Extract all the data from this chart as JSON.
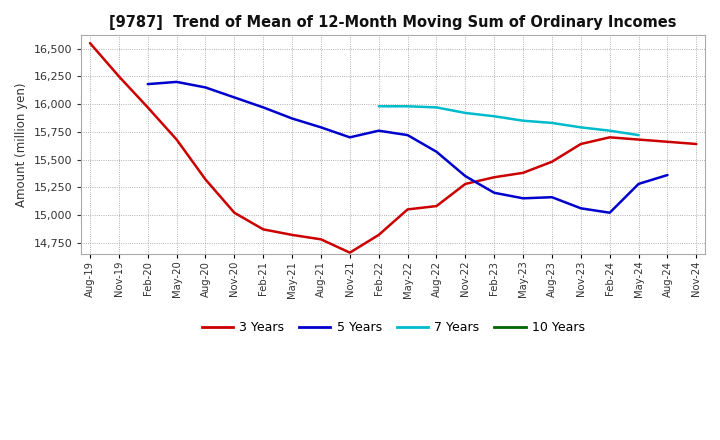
{
  "title": "[9787]  Trend of Mean of 12-Month Moving Sum of Ordinary Incomes",
  "ylabel": "Amount (million yen)",
  "background_color": "#ffffff",
  "plot_bg_color": "#ffffff",
  "grid_color": "#aaaaaa",
  "x_labels": [
    "Aug-19",
    "Nov-19",
    "Feb-20",
    "May-20",
    "Aug-20",
    "Nov-20",
    "Feb-21",
    "May-21",
    "Aug-21",
    "Nov-21",
    "Feb-22",
    "May-22",
    "Aug-22",
    "Nov-22",
    "Feb-23",
    "May-23",
    "Aug-23",
    "Nov-23",
    "Feb-24",
    "May-24",
    "Aug-24",
    "Nov-24"
  ],
  "ylim": [
    14650,
    16620
  ],
  "yticks": [
    14750,
    15000,
    15250,
    15500,
    15750,
    16000,
    16250,
    16500
  ],
  "series": {
    "3 Years": {
      "color": "#cc0000",
      "data": [
        16550,
        16250,
        15970,
        15680,
        15320,
        15020,
        14870,
        14820,
        14780,
        14660,
        14820,
        15050,
        15080,
        15280,
        15340,
        15380,
        15480,
        15640,
        15700,
        15680,
        15660,
        15640
      ]
    },
    "5 Years": {
      "color": "#0000cc",
      "data": [
        null,
        null,
        16180,
        16200,
        16150,
        16060,
        15970,
        15870,
        15790,
        15700,
        15760,
        15720,
        15570,
        15350,
        15200,
        15150,
        15160,
        15060,
        15020,
        15280,
        15360,
        null
      ]
    },
    "7 Years": {
      "color": "#00bbcc",
      "data": [
        null,
        null,
        null,
        null,
        null,
        null,
        null,
        null,
        null,
        null,
        15980,
        15980,
        15970,
        15920,
        15890,
        15850,
        15830,
        15790,
        15760,
        15720,
        null,
        null
      ]
    },
    "10 Years": {
      "color": "#006600",
      "data": [
        null,
        null,
        null,
        null,
        null,
        null,
        null,
        null,
        null,
        null,
        null,
        null,
        null,
        null,
        null,
        null,
        null,
        null,
        null,
        null,
        null,
        null
      ]
    }
  },
  "legend_entries": [
    "3 Years",
    "5 Years",
    "7 Years",
    "10 Years"
  ],
  "legend_colors": [
    "#cc0000",
    "#0000cc",
    "#00bbcc",
    "#006600"
  ]
}
